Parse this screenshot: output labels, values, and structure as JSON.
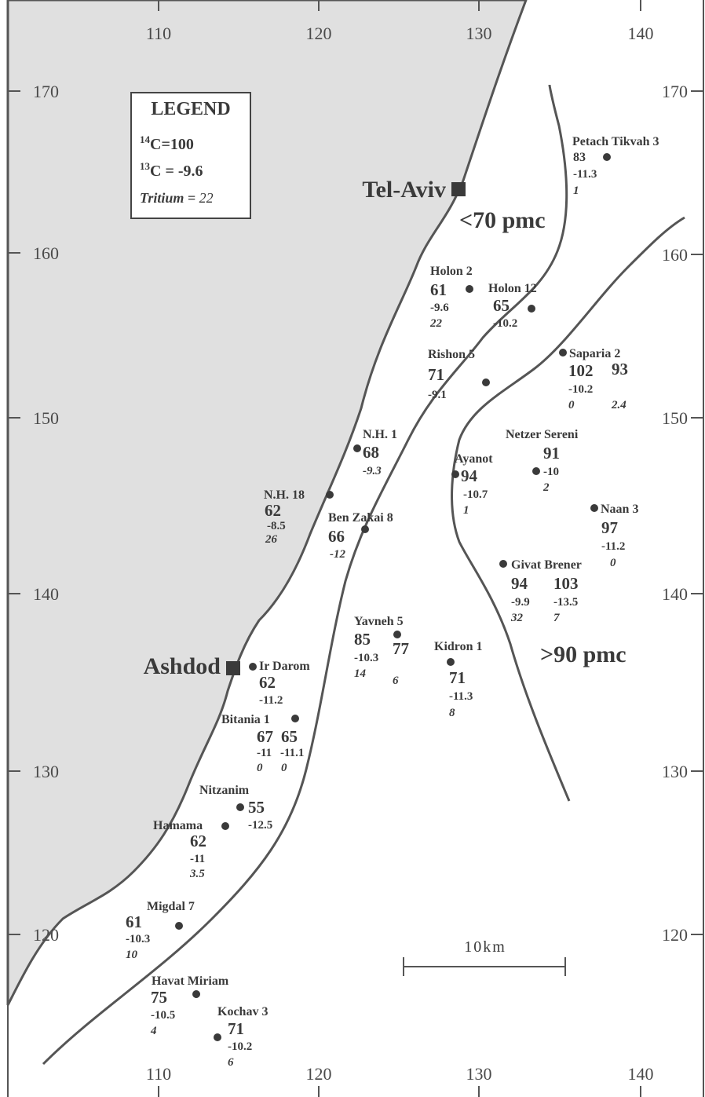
{
  "map": {
    "axis_x_ticks": [
      "110",
      "120",
      "130",
      "140"
    ],
    "axis_y_ticks": [
      "170",
      "160",
      "150",
      "140",
      "130",
      "120"
    ],
    "legend": {
      "title": "LEGEND",
      "c14_sup": "14",
      "c14_text": "C=100",
      "c13_sup": "13",
      "c13_text": "C = -9.6",
      "tritium_label": "Tritium = ",
      "tritium_value": "22"
    },
    "cities": [
      {
        "name": "Tel-Aviv"
      },
      {
        "name": "Ashdod"
      }
    ],
    "zones": [
      {
        "label": "<70 pmc"
      },
      {
        "label": ">90 pmc"
      }
    ],
    "scale_label": "10km",
    "colors": {
      "sea": "#e0e0e0",
      "line": "#555555",
      "text": "#3a3a3a"
    },
    "wells": [
      {
        "name": "Petach Tikvah 3",
        "c14": "83",
        "c13": "-11.3",
        "tritium": "1"
      },
      {
        "name": "Holon 2",
        "c14": "61",
        "c13": "-9.6",
        "tritium": "22"
      },
      {
        "name": "Holon 12",
        "c14": "65",
        "c13": "-10.2",
        "tritium": ""
      },
      {
        "name": "Rishon 5",
        "c14": "71",
        "c13": "-9.1",
        "tritium": ""
      },
      {
        "name": "Saparia 2",
        "c14": "102",
        "c13": "-10.2",
        "tritium": "0",
        "c14b": "93",
        "tritiumb": "2.4"
      },
      {
        "name": "N.H. 1",
        "c14": "68",
        "c13": "-9.3",
        "tritium": ""
      },
      {
        "name": "Netzer Sereni",
        "c14": "91",
        "c13": "-10",
        "tritium": "2"
      },
      {
        "name": "Ayanot",
        "c14": "94",
        "c13": "-10.7",
        "tritium": "1"
      },
      {
        "name": "N.H. 18",
        "c14": "62",
        "c13": "-8.5",
        "tritium": "26"
      },
      {
        "name": "Ben Zakai 8",
        "c14": "66",
        "c13": "-12",
        "tritium": ""
      },
      {
        "name": "Naan 3",
        "c14": "97",
        "c13": "-11.2",
        "tritium": "0"
      },
      {
        "name": "Givat Brener",
        "c14": "94",
        "c13": "-9.9",
        "tritium": "32",
        "c14b": "103",
        "c13b": "-13.5",
        "tritiumb": "7"
      },
      {
        "name": "Yavneh 5",
        "c14": "85",
        "c13": "-10.3",
        "tritium": "14",
        "c14b": "77",
        "tritiumb": "6"
      },
      {
        "name": "Kidron 1",
        "c14": "71",
        "c13": "-11.3",
        "tritium": "8"
      },
      {
        "name": "Ir Darom",
        "c14": "62",
        "c13": "-11.2",
        "tritium": ""
      },
      {
        "name": "Bitania 1",
        "c14": "67",
        "c13": "-11",
        "tritium": "0",
        "c14b": "65",
        "c13b": "-11.1",
        "tritiumb": "0"
      },
      {
        "name": "Nitzanim",
        "c14": "55",
        "c13": "-12.5",
        "tritium": ""
      },
      {
        "name": "Hamama",
        "c14": "62",
        "c13": "-11",
        "tritium": "3.5"
      },
      {
        "name": "Migdal 7",
        "c14": "61",
        "c13": "-10.3",
        "tritium": "10"
      },
      {
        "name": "Havat Miriam",
        "c14": "75",
        "c13": "-10.5",
        "tritium": "4"
      },
      {
        "name": "Kochav 3",
        "c14": "71",
        "c13": "-10.2",
        "tritium": "6"
      }
    ]
  }
}
